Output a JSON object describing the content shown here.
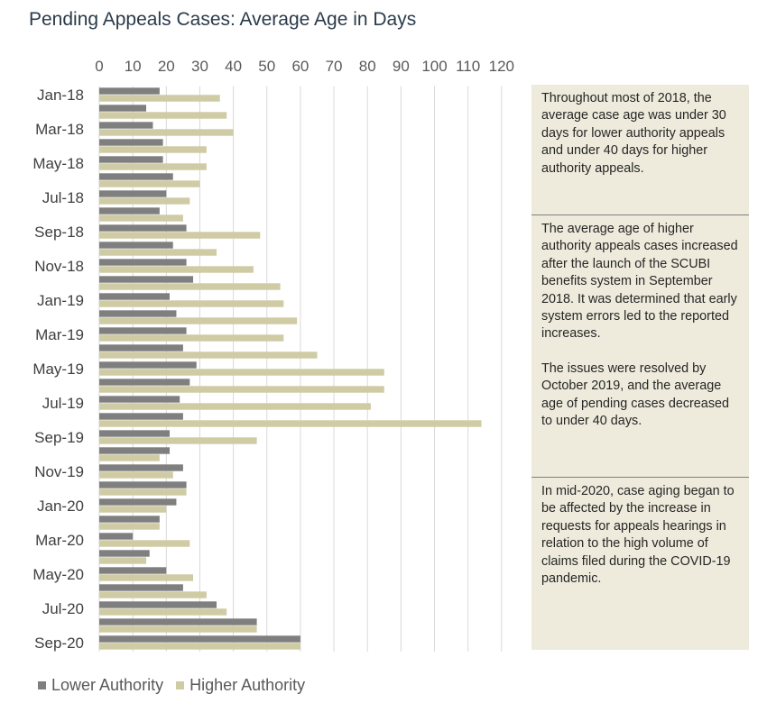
{
  "title": "Pending Appeals Cases: Average Age in Days",
  "chart_data": {
    "type": "bar",
    "orientation": "horizontal",
    "categories": [
      "Jan-18",
      "Feb-18",
      "Mar-18",
      "Apr-18",
      "May-18",
      "Jun-18",
      "Jul-18",
      "Aug-18",
      "Sep-18",
      "Oct-18",
      "Nov-18",
      "Dec-18",
      "Jan-19",
      "Feb-19",
      "Mar-19",
      "Apr-19",
      "May-19",
      "Jun-19",
      "Jul-19",
      "Aug-19",
      "Sep-19",
      "Oct-19",
      "Nov-19",
      "Dec-19",
      "Jan-20",
      "Feb-20",
      "Mar-20",
      "Apr-20",
      "May-20",
      "Jun-20",
      "Jul-20",
      "Aug-20",
      "Sep-20"
    ],
    "category_labels_shown": [
      "Jan-18",
      "Mar-18",
      "May-18",
      "Jul-18",
      "Sep-18",
      "Nov-18",
      "Jan-19",
      "Mar-19",
      "May-19",
      "Jul-19",
      "Sep-19",
      "Nov-19",
      "Jan-20",
      "Mar-20",
      "May-20",
      "Jul-20",
      "Sep-20"
    ],
    "series": [
      {
        "name": "Lower Authority",
        "color": "#7f7f7f",
        "values": [
          18,
          14,
          16,
          19,
          19,
          22,
          20,
          18,
          26,
          22,
          26,
          28,
          21,
          23,
          26,
          25,
          29,
          27,
          24,
          25,
          21,
          21,
          25,
          26,
          23,
          18,
          10,
          15,
          20,
          25,
          35,
          47,
          60
        ]
      },
      {
        "name": "Higher Authority",
        "color": "#cfcba4",
        "values": [
          36,
          38,
          40,
          32,
          32,
          30,
          27,
          25,
          48,
          35,
          46,
          54,
          55,
          59,
          55,
          65,
          85,
          85,
          81,
          114,
          47,
          18,
          22,
          26,
          20,
          18,
          27,
          14,
          28,
          32,
          38,
          47,
          60
        ]
      }
    ],
    "x_ticks": [
      "0",
      "10",
      "20",
      "30",
      "40",
      "50",
      "60",
      "70",
      "80",
      "90",
      "100",
      "110",
      "120"
    ],
    "xlim": [
      0,
      120
    ],
    "grid": "vertical",
    "legend_position": "bottom-left"
  },
  "annotations": [
    "Throughout most of 2018, the average case age was under 30 days for lower authority appeals and under 40 days for higher authority appeals.",
    "The average age of higher authority appeals cases increased after the launch of the SCUBI benefits system in September 2018. It was determined that early system errors led to the reported increases.",
    "The issues were resolved by October 2019, and the average age of pending cases decreased to under 40 days.",
    "In mid-2020, case aging began to be affected by the increase in requests for appeals hearings in relation to the high volume of claims filed during the COVID-19 pandemic."
  ]
}
